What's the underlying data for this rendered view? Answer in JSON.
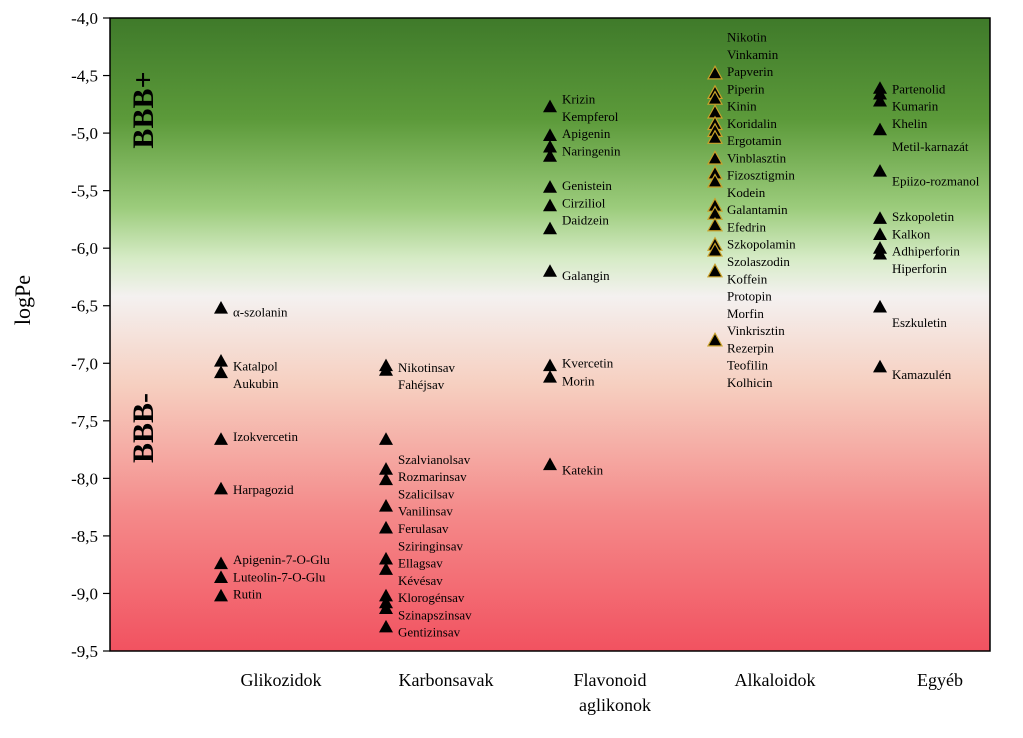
{
  "chart_data": {
    "type": "scatter",
    "ylabel": "logPe",
    "ylim": [
      -9.5,
      -4.0
    ],
    "yticks": [
      "-4,0",
      "-4,5",
      "-5,0",
      "-5,5",
      "-6,0",
      "-6,5",
      "-7,0",
      "-7,5",
      "-8,0",
      "-8,5",
      "-9,0",
      "-9,5"
    ],
    "yticks_values": [
      -4.0,
      -4.5,
      -5.0,
      -5.5,
      -6.0,
      -6.5,
      -7.0,
      -7.5,
      -8.0,
      -8.5,
      -9.0,
      -9.5
    ],
    "band_labels": [
      "BBB+",
      "BBB-"
    ],
    "colors": {
      "background_top": "#3f7a2a",
      "background_mid": "#f4f1f0",
      "background_bottom": "#f25260",
      "marker": "#000000",
      "marker_alkaloid_outline": "#c8a02a"
    },
    "categories": [
      {
        "name": "Glikozidok",
        "points": [
          {
            "y": -6.52,
            "label": "α-szolanin",
            "label_y": -6.56
          },
          {
            "y": -6.98,
            "label": "Katalpol",
            "label_y": -7.03
          },
          {
            "y": -7.08,
            "label": "Aukubin",
            "label_y": -7.18
          },
          {
            "y": -7.66,
            "label": "Izokvercetin",
            "label_y": -7.64
          },
          {
            "y": -8.09,
            "label": "Harpagozid",
            "label_y": -8.1
          },
          {
            "y": -8.74,
            "label": "Apigenin-7-O-Glu",
            "label_y": -8.71
          },
          {
            "y": -8.86,
            "label": "Luteolin-7-O-Glu",
            "label_y": -8.86
          },
          {
            "y": -9.02,
            "label": "Rutin",
            "label_y": -9.01
          }
        ]
      },
      {
        "name": "Karbonsavak",
        "points": [
          {
            "y": -7.02,
            "label": "Nikotinsav",
            "label_y": -7.04
          },
          {
            "y": -7.06,
            "label": "Fahéjsav",
            "label_y": -7.19
          },
          {
            "y": -7.66,
            "label": "Szalvianolsav",
            "label_y": -7.84
          },
          {
            "y": -7.92,
            "label": "Rozmarinsav",
            "label_y": -7.99
          },
          {
            "y": -8.01,
            "label": "Szalicilsav",
            "label_y": -8.14
          },
          {
            "y": -8.24,
            "label": "Vanilinsav",
            "label_y": -8.29
          },
          {
            "y": -8.43,
            "label": "Ferulasav",
            "label_y": -8.44
          },
          {
            "y": -8.7,
            "label": "Sziringinsav",
            "label_y": -8.59
          },
          {
            "y": -8.79,
            "label": "Ellagsav",
            "label_y": -8.74
          },
          {
            "y": -9.02,
            "label": "Kévésav",
            "label_y": -8.89
          },
          {
            "y": -9.08,
            "label": "Klorogénsav",
            "label_y": -9.04
          },
          {
            "y": -9.13,
            "label": "Szinapszinsav",
            "label_y": -9.19
          },
          {
            "y": -9.29,
            "label": "Gentizinsav",
            "label_y": -9.34
          }
        ]
      },
      {
        "name": "Flavonoid aglikonok",
        "name_lines": [
          "Flavonoid",
          "aglikonok"
        ],
        "points": [
          {
            "y": -4.77,
            "label": "Krizin",
            "label_y": -4.71
          },
          {
            "y": -5.02,
            "label": "Kempferol",
            "label_y": -4.86
          },
          {
            "y": -5.12,
            "label": "Apigenin",
            "label_y": -5.01
          },
          {
            "y": -5.2,
            "label": "Naringenin",
            "label_y": -5.16
          },
          {
            "y": -5.47,
            "label": "Genistein",
            "label_y": -5.46
          },
          {
            "y": -5.63,
            "label": "Cirziliol",
            "label_y": -5.61
          },
          {
            "y": -5.83,
            "label": "Daidzein",
            "label_y": -5.76
          },
          {
            "y": -6.2,
            "label": "Galangin",
            "label_y": -6.24
          },
          {
            "y": -7.02,
            "label": "Kvercetin",
            "label_y": -7.0
          },
          {
            "y": -7.12,
            "label": "Morin",
            "label_y": -7.16
          },
          {
            "y": -7.88,
            "label": "Katekin",
            "label_y": -7.93
          }
        ]
      },
      {
        "name": "Alkaloidok",
        "points": [
          {
            "y": -4.48,
            "label": "Nikotin",
            "label_y": -4.17
          },
          {
            "y": -4.65,
            "label": "Vinkamin",
            "label_y": -4.32
          },
          {
            "y": -4.7,
            "label": "Papverin",
            "label_y": -4.47
          },
          {
            "y": -4.82,
            "label": "Piperin",
            "label_y": -4.62
          },
          {
            "y": -4.92,
            "label": "Kinin",
            "label_y": -4.77
          },
          {
            "y": -4.98,
            "label": "Koridalin",
            "label_y": -4.92
          },
          {
            "y": -5.04,
            "label": "Ergotamin",
            "label_y": -5.07
          },
          {
            "y": -5.22,
            "label": "Vinblasztin",
            "label_y": -5.22
          },
          {
            "y": -5.35,
            "label": "Fizosztigmin",
            "label_y": -5.37
          },
          {
            "y": -5.42,
            "label": "Kodein",
            "label_y": -5.52
          },
          {
            "y": -5.63,
            "label": "Galantamin",
            "label_y": -5.67
          },
          {
            "y": -5.7,
            "label": "Efedrin",
            "label_y": -5.82
          },
          {
            "y": -5.8,
            "label": "Szkopolamin",
            "label_y": -5.97
          },
          {
            "y": -5.97,
            "label": "Szolaszodin",
            "label_y": -6.12
          },
          {
            "y": -6.02,
            "label": "Koffein",
            "label_y": -6.27
          },
          {
            "y": -6.2,
            "label": "Protopin",
            "label_y": -6.42
          },
          {
            "y": -6.8,
            "label": "Morfin",
            "label_y": -6.57
          },
          {
            "y": null,
            "label": "Vinkrisztin",
            "label_y": -6.72
          },
          {
            "y": null,
            "label": "Rezerpin",
            "label_y": -6.87
          },
          {
            "y": null,
            "label": "Teofilin",
            "label_y": -7.02
          },
          {
            "y": null,
            "label": "Kolhicin",
            "label_y": -7.17
          }
        ]
      },
      {
        "name": "Egyéb",
        "points": [
          {
            "y": -4.61,
            "label": "Partenolid",
            "label_y": -4.62
          },
          {
            "y": -4.66,
            "label": "Kumarin",
            "label_y": -4.77
          },
          {
            "y": -4.72,
            "label": "Khelin",
            "label_y": -4.92
          },
          {
            "y": -4.97,
            "label": "Metil-karnazát",
            "label_y": -5.12
          },
          {
            "y": -5.33,
            "label": "Epiizo-rozmanol",
            "label_y": -5.42
          },
          {
            "y": -5.74,
            "label": "Szkopoletin",
            "label_y": -5.73
          },
          {
            "y": -5.88,
            "label": "Kalkon",
            "label_y": -5.88
          },
          {
            "y": -6.0,
            "label": "Adhiperforin",
            "label_y": -6.03
          },
          {
            "y": -6.05,
            "label": "Hiperforin",
            "label_y": -6.18
          },
          {
            "y": -6.51,
            "label": "Eszkuletin",
            "label_y": -6.65
          },
          {
            "y": -7.03,
            "label": "Kamazulén",
            "label_y": -7.1
          }
        ]
      }
    ]
  }
}
